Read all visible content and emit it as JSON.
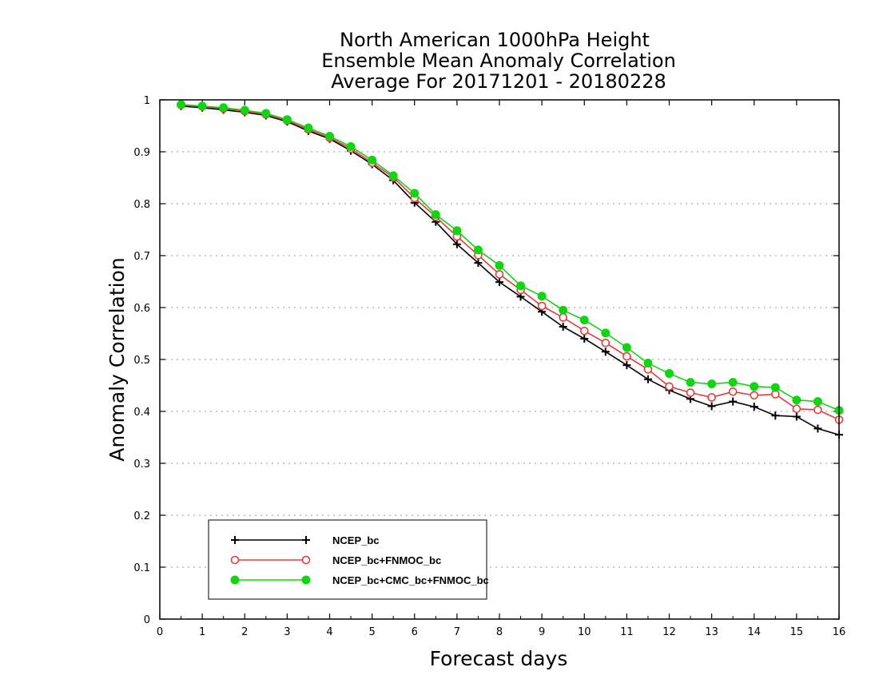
{
  "chart_data": {
    "type": "line",
    "title_lines": [
      "North American 1000hPa Height",
      "Ensemble Mean Anomaly Correlation",
      "Average For 20171201 - 20180228"
    ],
    "xlabel": "Forecast days",
    "ylabel": "Anomaly Correlation",
    "xlim": [
      0,
      16
    ],
    "ylim": [
      0,
      1
    ],
    "x_ticks": [
      "0",
      "1",
      "2",
      "3",
      "4",
      "5",
      "6",
      "7",
      "8",
      "9",
      "10",
      "11",
      "12",
      "13",
      "14",
      "15",
      "16"
    ],
    "y_ticks": [
      "0",
      "0.1",
      "0.2",
      "0.3",
      "0.4",
      "0.5",
      "0.6",
      "0.7",
      "0.8",
      "0.9",
      "1"
    ],
    "grid": "horizontal dotted",
    "legend_position": "bottom-left",
    "x": [
      0.5,
      1,
      1.5,
      2,
      2.5,
      3,
      3.5,
      4,
      4.5,
      5,
      5.5,
      6,
      6.5,
      7,
      7.5,
      8,
      8.5,
      9,
      9.5,
      10,
      10.5,
      11,
      11.5,
      12,
      12.5,
      13,
      13.5,
      14,
      14.5,
      15,
      15.5,
      16
    ],
    "series": [
      {
        "name": "NCEP_bc",
        "color": "#000000",
        "marker": "plus",
        "values": [
          0.988,
          0.985,
          0.981,
          0.976,
          0.97,
          0.958,
          0.94,
          0.925,
          0.902,
          0.876,
          0.845,
          0.802,
          0.765,
          0.722,
          0.686,
          0.649,
          0.621,
          0.592,
          0.563,
          0.54,
          0.515,
          0.489,
          0.462,
          0.441,
          0.424,
          0.41,
          0.419,
          0.409,
          0.392,
          0.39,
          0.367,
          0.355
        ]
      },
      {
        "name": "NCEP_bc+FNMOC_bc",
        "color": "#e83a3a",
        "marker": "open-circle",
        "values": [
          0.99,
          0.987,
          0.983,
          0.978,
          0.972,
          0.96,
          0.943,
          0.927,
          0.906,
          0.879,
          0.851,
          0.811,
          0.775,
          0.737,
          0.701,
          0.664,
          0.634,
          0.603,
          0.581,
          0.555,
          0.532,
          0.506,
          0.481,
          0.448,
          0.436,
          0.427,
          0.438,
          0.431,
          0.433,
          0.405,
          0.403,
          0.384
        ]
      },
      {
        "name": "NCEP_bc+CMC_bc+FNMOC_bc",
        "color": "#12d512",
        "marker": "filled-circle",
        "values": [
          0.991,
          0.988,
          0.985,
          0.98,
          0.974,
          0.962,
          0.946,
          0.93,
          0.91,
          0.884,
          0.854,
          0.82,
          0.779,
          0.748,
          0.711,
          0.681,
          0.642,
          0.622,
          0.595,
          0.576,
          0.551,
          0.523,
          0.493,
          0.473,
          0.456,
          0.453,
          0.456,
          0.448,
          0.446,
          0.422,
          0.419,
          0.402
        ]
      }
    ]
  }
}
